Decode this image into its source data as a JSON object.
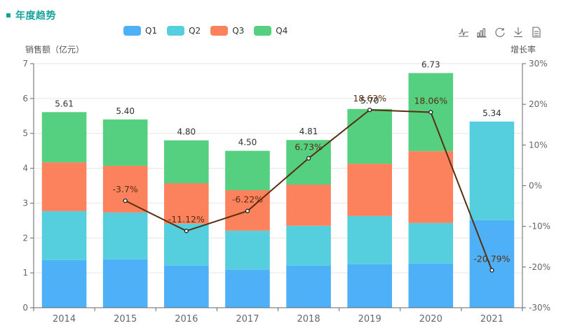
{
  "title": "年度趋势",
  "toolbox": [
    {
      "name": "line-chart-icon",
      "label": "切换为折线图"
    },
    {
      "name": "bar-chart-icon",
      "label": "切换为柱状图"
    },
    {
      "name": "restore-icon",
      "label": "还原"
    },
    {
      "name": "download-icon",
      "label": "保存为图片"
    },
    {
      "name": "data-view-icon",
      "label": "数据视图"
    }
  ],
  "chart_data": {
    "type": "bar",
    "stacked": true,
    "title": "年度趋势",
    "categories": [
      "2014",
      "2015",
      "2016",
      "2017",
      "2018",
      "2019",
      "2020",
      "2021"
    ],
    "series": [
      {
        "name": "Q1",
        "color": "#4eb0f7",
        "values": [
          1.37,
          1.39,
          1.21,
          1.09,
          1.21,
          1.25,
          1.27,
          2.51
        ]
      },
      {
        "name": "Q2",
        "color": "#55cfde",
        "values": [
          1.4,
          1.34,
          1.2,
          1.12,
          1.14,
          1.38,
          1.16,
          2.83
        ]
      },
      {
        "name": "Q3",
        "color": "#fb825c",
        "values": [
          1.4,
          1.34,
          1.16,
          1.16,
          1.18,
          1.5,
          2.06,
          0
        ]
      },
      {
        "name": "Q4",
        "color": "#55cf80",
        "values": [
          1.44,
          1.33,
          1.23,
          1.13,
          1.28,
          1.57,
          2.24,
          0
        ]
      }
    ],
    "totals": [
      "5.61",
      "5.40",
      "4.80",
      "4.50",
      "4.81",
      "5.70",
      "6.73",
      "5.34"
    ],
    "line_series": {
      "name": "增长率",
      "color": "#5a2e10",
      "axis": "right",
      "values": [
        null,
        -3.7,
        -11.12,
        -6.22,
        6.73,
        18.63,
        18.06,
        -20.79
      ],
      "labels": [
        "",
        "-3.7%",
        "-11.12%",
        "-6.22%",
        "6.73%",
        "18.63%",
        "18.06%",
        "-20.79%"
      ]
    },
    "ylabel": "销售额（亿元）",
    "ylabel_right": "增长率",
    "ylim": [
      0,
      7
    ],
    "yticks": [
      "0",
      "1",
      "2",
      "3",
      "4",
      "5",
      "6",
      "7"
    ],
    "ylim_right": [
      -30,
      30
    ],
    "yticks_right": [
      "-30%",
      "-20%",
      "-10%",
      "0%",
      "10%",
      "20%",
      "30%"
    ],
    "grid": true,
    "legend_position": "top-center"
  }
}
